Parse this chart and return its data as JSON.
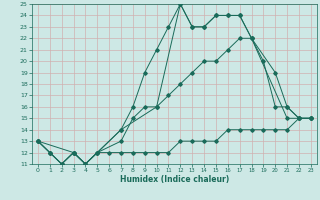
{
  "xlabel": "Humidex (Indice chaleur)",
  "background_color": "#cde8e5",
  "line_color": "#1a6b5a",
  "grid_color": "#b0d0cc",
  "xlim": [
    -0.5,
    23.5
  ],
  "ylim": [
    11,
    25
  ],
  "xticks": [
    0,
    1,
    2,
    3,
    4,
    5,
    6,
    7,
    8,
    9,
    10,
    11,
    12,
    13,
    14,
    15,
    16,
    17,
    18,
    19,
    20,
    21,
    22,
    23
  ],
  "yticks": [
    11,
    12,
    13,
    14,
    15,
    16,
    17,
    18,
    19,
    20,
    21,
    22,
    23,
    24,
    25
  ],
  "lines": [
    {
      "x": [
        0,
        1,
        2,
        3,
        4,
        5,
        7,
        8,
        9,
        10,
        11,
        12,
        13,
        14,
        15,
        16,
        17,
        18,
        21,
        22,
        23
      ],
      "y": [
        13,
        12,
        11,
        12,
        11,
        12,
        14,
        16,
        19,
        21,
        23,
        25,
        23,
        23,
        24,
        24,
        24,
        22,
        15,
        15,
        15
      ]
    },
    {
      "x": [
        0,
        1,
        2,
        3,
        4,
        5,
        7,
        8,
        9,
        10,
        11,
        12,
        13,
        14,
        15,
        16,
        17,
        18,
        19,
        20,
        21,
        22,
        23
      ],
      "y": [
        13,
        12,
        11,
        12,
        11,
        12,
        13,
        15,
        16,
        16,
        17,
        18,
        19,
        20,
        20,
        21,
        22,
        22,
        20,
        16,
        16,
        15,
        15
      ]
    },
    {
      "x": [
        0,
        1,
        2,
        3,
        4,
        5,
        6,
        7,
        8,
        9,
        10,
        11,
        12,
        13,
        14,
        15,
        16,
        17,
        18,
        19,
        20,
        21,
        22,
        23
      ],
      "y": [
        13,
        12,
        11,
        12,
        11,
        12,
        12,
        12,
        12,
        12,
        12,
        12,
        13,
        13,
        13,
        13,
        14,
        14,
        14,
        14,
        14,
        14,
        15,
        15
      ]
    },
    {
      "x": [
        0,
        3,
        4,
        7,
        10,
        12,
        13,
        14,
        15,
        16,
        17,
        18,
        20,
        21,
        22,
        23
      ],
      "y": [
        13,
        12,
        11,
        14,
        16,
        25,
        23,
        23,
        24,
        24,
        24,
        22,
        19,
        16,
        15,
        15
      ]
    }
  ]
}
